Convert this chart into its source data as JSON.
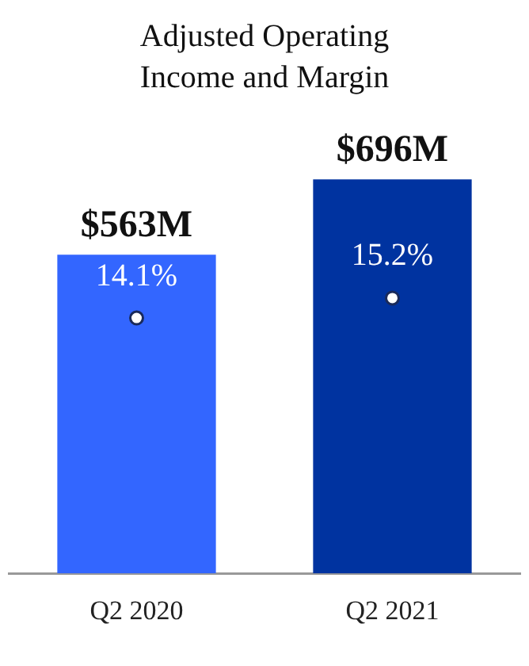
{
  "chart_data": {
    "type": "bar",
    "title": "Adjusted Operating Income and Margin",
    "categories": [
      "Q2 2020",
      "Q2 2021"
    ],
    "series": [
      {
        "colors": [
          "#3366ff",
          "#0033a0"
        ],
        "values": [
          563,
          696
        ],
        "value_labels": [
          "$563M",
          "$696M"
        ]
      },
      {
        "type": "scatter",
        "axis": "y2",
        "color": "#ffffff",
        "values": [
          14.1,
          15.2
        ],
        "value_labels": [
          "14.1%",
          "15.2%"
        ]
      }
    ],
    "tick_labels": "x"
  }
}
